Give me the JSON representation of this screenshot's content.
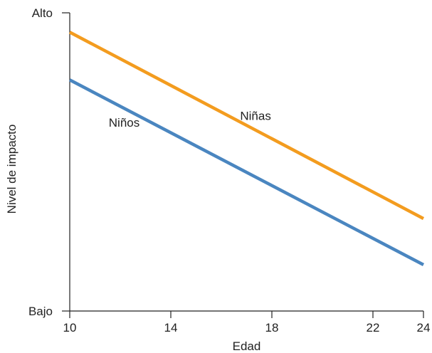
{
  "chart_data": {
    "type": "line",
    "title": "",
    "xlabel": "Edad",
    "ylabel": "Nivel de impacto",
    "xlim": [
      10,
      24
    ],
    "ylim": [
      0,
      1
    ],
    "x_ticks": [
      10,
      14,
      18,
      22,
      24
    ],
    "y_ticks": [
      {
        "value": 0,
        "label": "Bajo"
      },
      {
        "value": 1,
        "label": "Alto"
      }
    ],
    "grid": false,
    "series": [
      {
        "name": "Niñas",
        "color": "#f39c1f",
        "x": [
          10,
          24
        ],
        "y": [
          0.935,
          0.31
        ]
      },
      {
        "name": "Niños",
        "color": "#4a86c0",
        "x": [
          10,
          24
        ],
        "y": [
          0.775,
          0.155
        ]
      }
    ]
  }
}
